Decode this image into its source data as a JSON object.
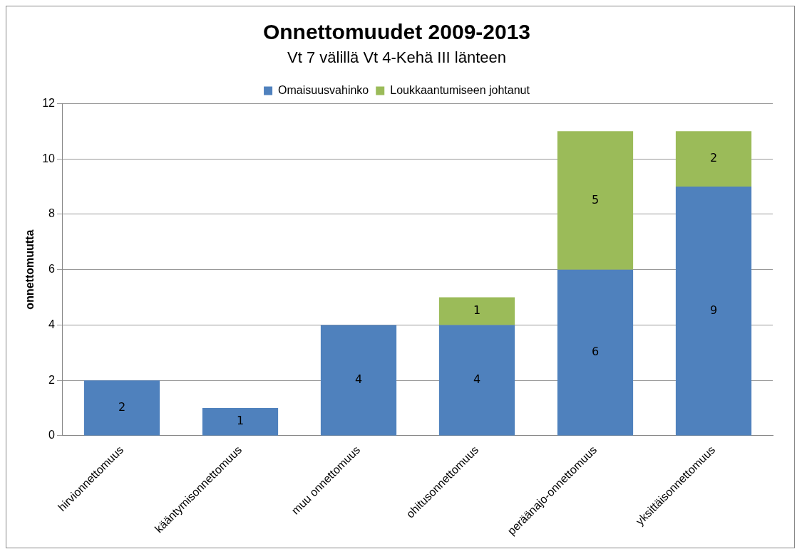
{
  "chart_data": {
    "type": "bar",
    "title": "Onnettomuudet 2009-2013",
    "subtitle": "Vt 7 välillä Vt 4-Kehä III länteen",
    "ylabel": "onnettomuutta",
    "categories": [
      "hirvionnettomuus",
      "kääntymisonnettomuus",
      "muu onnettomuus",
      "ohitusonnettomuus",
      "peräänajo-onnettomuus",
      "yksittäisonnettomuus"
    ],
    "series": [
      {
        "name": "Omaisuusvahinko",
        "color": "#4f81bd",
        "values": [
          2,
          1,
          4,
          4,
          6,
          9
        ]
      },
      {
        "name": "Loukkaantumiseen johtanut",
        "color": "#9bbb59",
        "values": [
          null,
          null,
          null,
          1,
          5,
          2
        ]
      }
    ],
    "stacked": true,
    "ylim": [
      0,
      12
    ],
    "yticks": [
      0,
      2,
      4,
      6,
      8,
      10,
      12
    ],
    "grid": "y",
    "legend": "top",
    "data_labels": true
  }
}
